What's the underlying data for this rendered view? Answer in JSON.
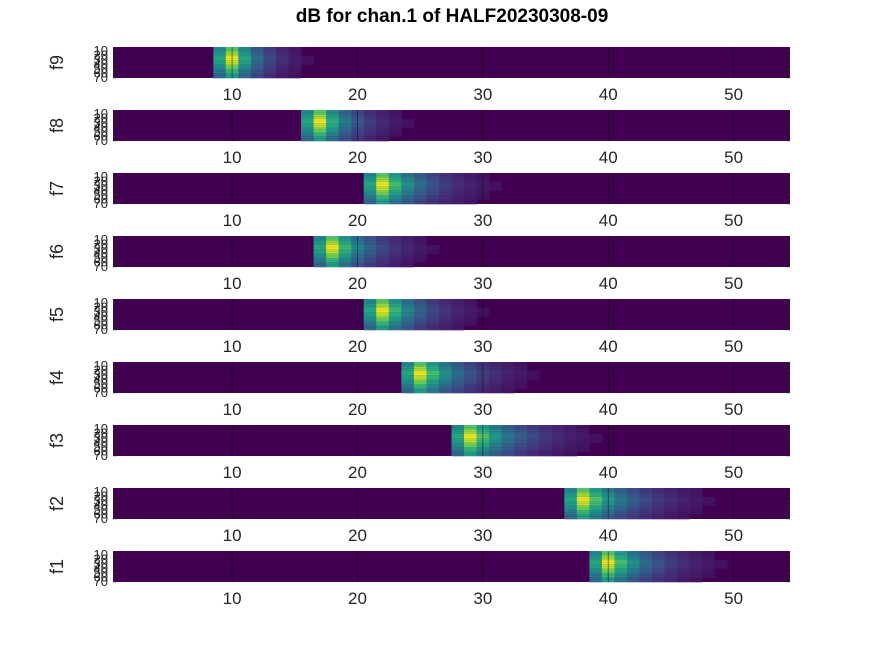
{
  "chart_data": {
    "type": "heatmap",
    "title": "dB for chan.1 of HALF20230308-09",
    "xlim": [
      0.5,
      54.5
    ],
    "ylim": [
      0.5,
      70.5
    ],
    "xticks": [
      "10",
      "20",
      "30",
      "40",
      "50"
    ],
    "yticks": [
      "10",
      "20",
      "30",
      "40",
      "50",
      "60",
      "70"
    ],
    "colormap": "viridis",
    "panels": [
      {
        "name": "f9",
        "peak_x": 10,
        "spread": 6
      },
      {
        "name": "f8",
        "peak_x": 17,
        "spread": 7
      },
      {
        "name": "f7",
        "peak_x": 22,
        "spread": 9
      },
      {
        "name": "f6",
        "peak_x": 18,
        "spread": 8
      },
      {
        "name": "f5",
        "peak_x": 22,
        "spread": 8
      },
      {
        "name": "f4",
        "peak_x": 25,
        "spread": 9
      },
      {
        "name": "f3",
        "peak_x": 29,
        "spread": 10
      },
      {
        "name": "f2",
        "peak_x": 38,
        "spread": 10
      },
      {
        "name": "f1",
        "peak_x": 40,
        "spread": 9
      }
    ]
  }
}
